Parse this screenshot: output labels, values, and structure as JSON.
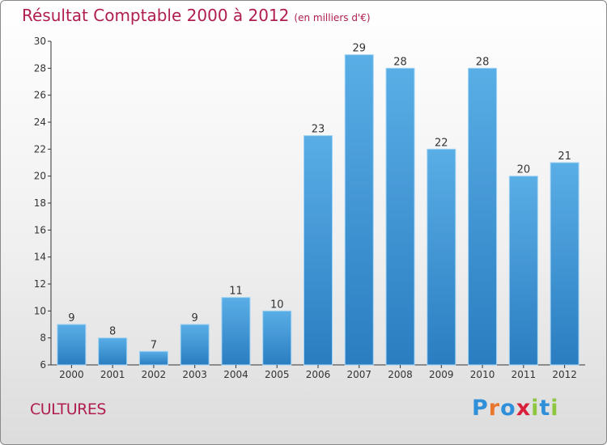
{
  "title": {
    "main": "Résultat Comptable 2000 à 2012",
    "unit": "(en milliers d'€)"
  },
  "commune": "CULTURES",
  "logo": {
    "text": "Proxiti",
    "letters": [
      {
        "ch": "P",
        "color": "#2f8fd8"
      },
      {
        "ch": "r",
        "color": "#e8762d"
      },
      {
        "ch": "o",
        "color": "#2f8fd8"
      },
      {
        "ch": "x",
        "color": "#d9203b"
      },
      {
        "ch": "i",
        "color": "#8dc63f"
      },
      {
        "ch": "t",
        "color": "#2f8fd8"
      },
      {
        "ch": "i",
        "color": "#8dc63f"
      }
    ]
  },
  "colors": {
    "title": "#b01d4f",
    "bar_top": "#5aaee6",
    "bar_bottom": "#2a7dc0",
    "bar_edge": "#9fd2f5",
    "axis": "#333333"
  },
  "chart_data": {
    "type": "bar",
    "title": "Résultat Comptable 2000 à 2012",
    "xlabel": "",
    "ylabel": "",
    "ylim": [
      6,
      30
    ],
    "ytick_step": 2,
    "categories": [
      "2000",
      "2001",
      "2002",
      "2003",
      "2004",
      "2005",
      "2006",
      "2007",
      "2008",
      "2009",
      "2010",
      "2011",
      "2012"
    ],
    "values": [
      9,
      8,
      7,
      9,
      11,
      10,
      23,
      29,
      28,
      22,
      28,
      20,
      21
    ],
    "grid": false
  }
}
